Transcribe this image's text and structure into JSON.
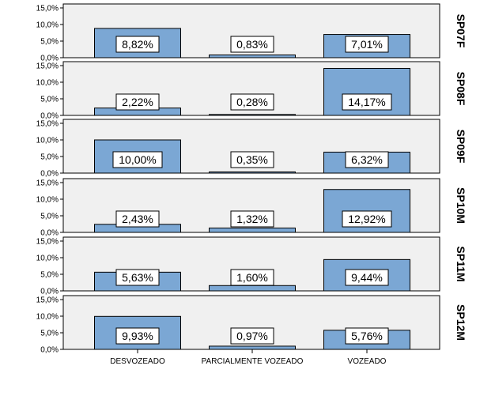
{
  "chart_data": {
    "type": "bar",
    "categories": [
      "DESVOZEADO",
      "PARCIALMENTE VOZEADO",
      "VOZEADO"
    ],
    "ylim": [
      0,
      15
    ],
    "yticks": [
      "0,0%",
      "5,0%",
      "10,0%",
      "15,0%"
    ],
    "ytick_values": [
      0,
      5,
      10,
      15
    ],
    "bar_color": "#7BA7D4",
    "panel_background": "#F0F0F0",
    "grid": false,
    "panels": [
      {
        "label": "SP07F",
        "values": [
          8.82,
          0.83,
          7.01
        ],
        "value_labels": [
          "8,82%",
          "0,83%",
          "7,01%"
        ]
      },
      {
        "label": "SP08F",
        "values": [
          2.22,
          0.28,
          14.17
        ],
        "value_labels": [
          "2,22%",
          "0,28%",
          "14,17%"
        ]
      },
      {
        "label": "SP09F",
        "values": [
          10.0,
          0.35,
          6.32
        ],
        "value_labels": [
          "10,00%",
          "0,35%",
          "6,32%"
        ]
      },
      {
        "label": "SP10M",
        "values": [
          2.43,
          1.32,
          12.92
        ],
        "value_labels": [
          "2,43%",
          "1,32%",
          "12,92%"
        ]
      },
      {
        "label": "SP11M",
        "values": [
          5.63,
          1.6,
          9.44
        ],
        "value_labels": [
          "5,63%",
          "1,60%",
          "9,44%"
        ]
      },
      {
        "label": "SP12M",
        "values": [
          9.93,
          0.97,
          5.76
        ],
        "value_labels": [
          "9,93%",
          "0,97%",
          "5,76%"
        ]
      }
    ]
  }
}
